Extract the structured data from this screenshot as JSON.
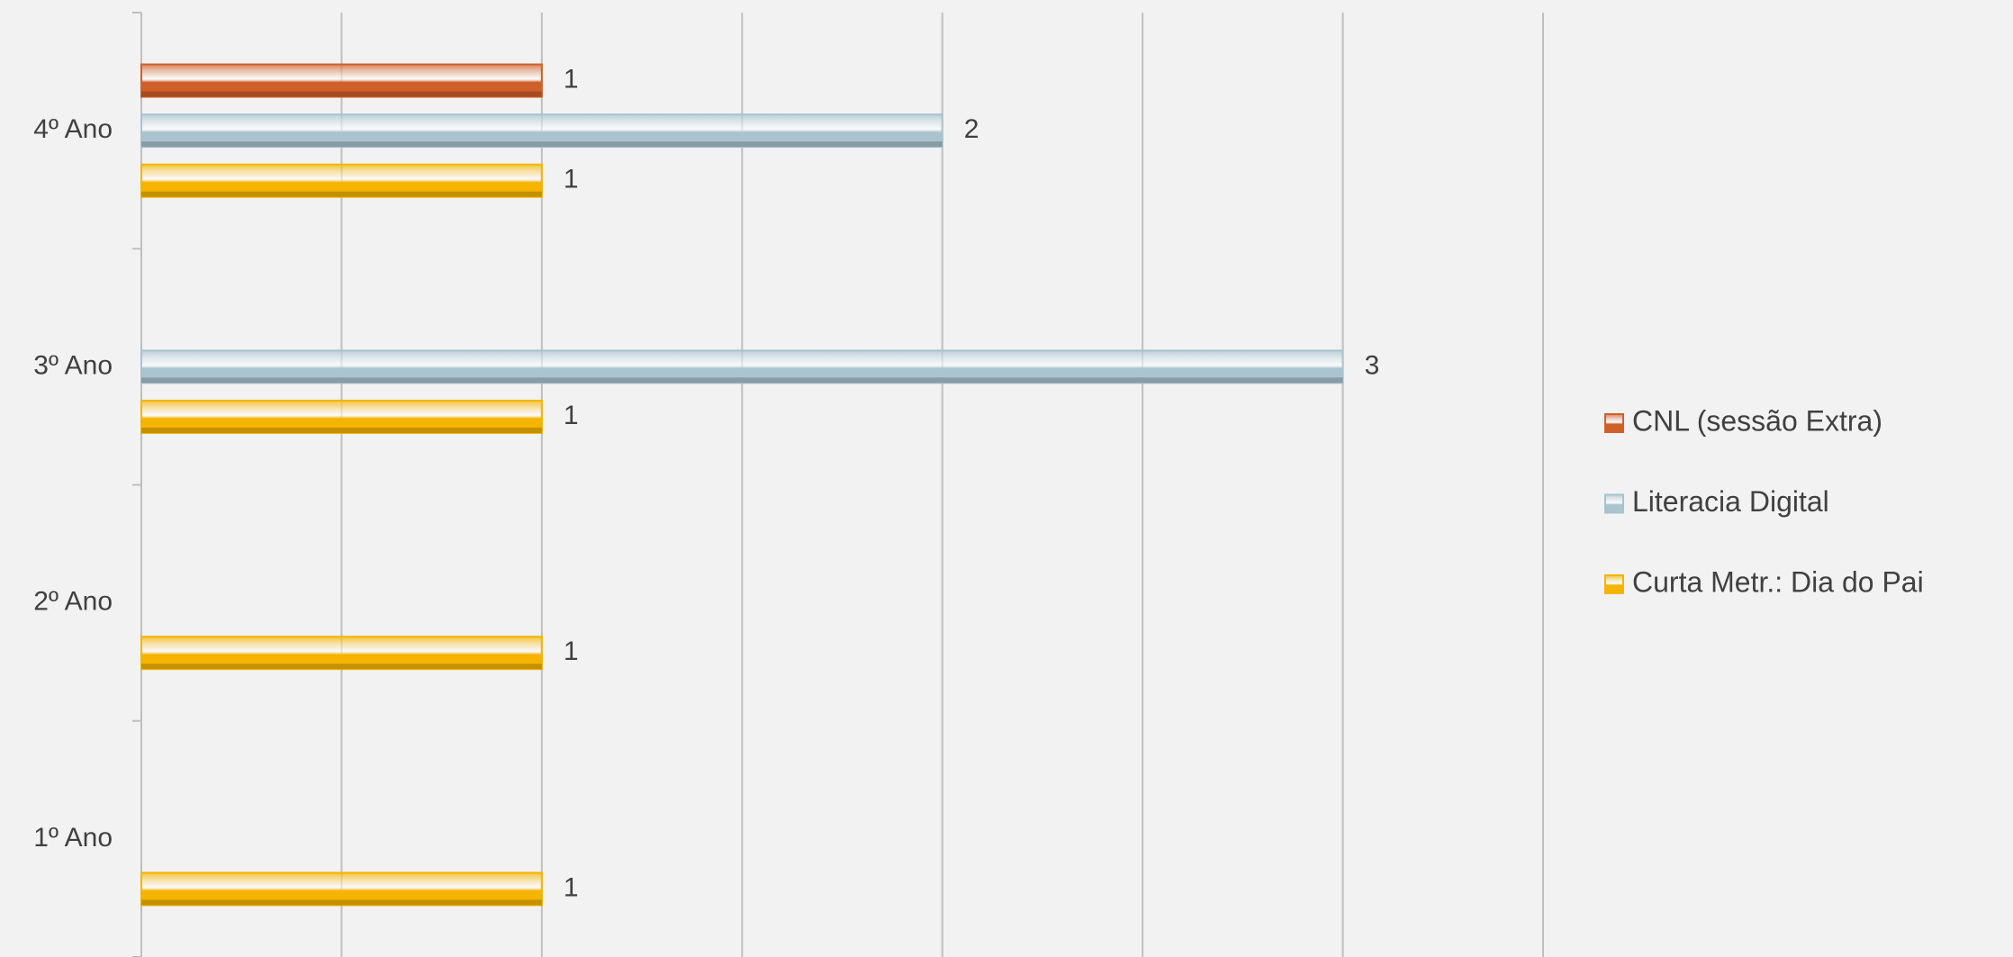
{
  "chart_data": {
    "type": "hbar",
    "categories": [
      "1º Ano",
      "2º Ano",
      "3º Ano",
      "4º Ano"
    ],
    "series": [
      {
        "name": "CNL (sessão Extra)",
        "color": "#d0602a",
        "values": [
          null,
          null,
          null,
          1
        ]
      },
      {
        "name": "Literacia Digital",
        "color": "#a9c3cf",
        "values": [
          null,
          null,
          3,
          2
        ]
      },
      {
        "name": "Curta Metr.: Dia do Pai",
        "color": "#f4b400",
        "values": [
          1,
          1,
          1,
          1
        ]
      }
    ],
    "xlim": [
      0,
      3.5
    ],
    "xticks": [
      0,
      0.5,
      1,
      1.5,
      2,
      2.5,
      3,
      3.5
    ],
    "grid": true,
    "legend": "right"
  }
}
